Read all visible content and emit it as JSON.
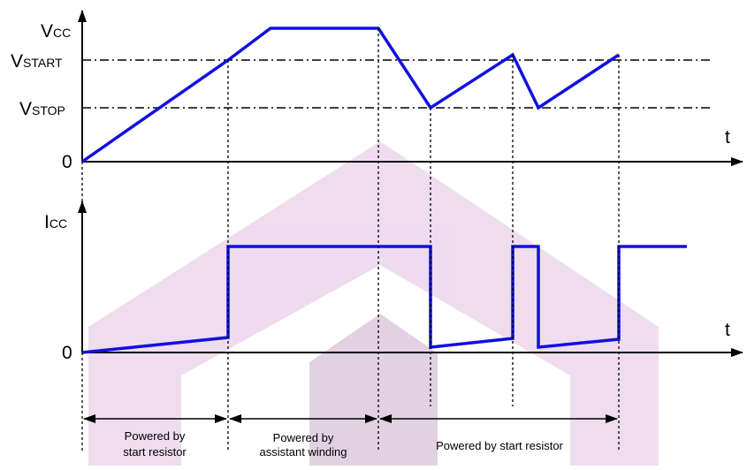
{
  "colors": {
    "waveform": "#1010e0",
    "axis": "#000000",
    "watermark": "#e9c8e9",
    "watermark_shadow": "#d8bfd8"
  },
  "vcc_plot": {
    "y_label_main": "V",
    "y_label_sub": "CC",
    "x_label": "t",
    "origin_label": "0",
    "level_start_main": "V",
    "level_start_sub": "START",
    "level_stop_main": "V",
    "level_stop_sub": "STOP"
  },
  "icc_plot": {
    "y_label_main": "I",
    "y_label_sub": "CC",
    "x_label": "t",
    "origin_label": "0"
  },
  "regions": [
    {
      "line1": "Powered by",
      "line2": "start resistor"
    },
    {
      "line1": "Powered by",
      "line2": "assistant winding"
    },
    {
      "line1": "Powered by start resistor",
      "line2": ""
    }
  ]
}
